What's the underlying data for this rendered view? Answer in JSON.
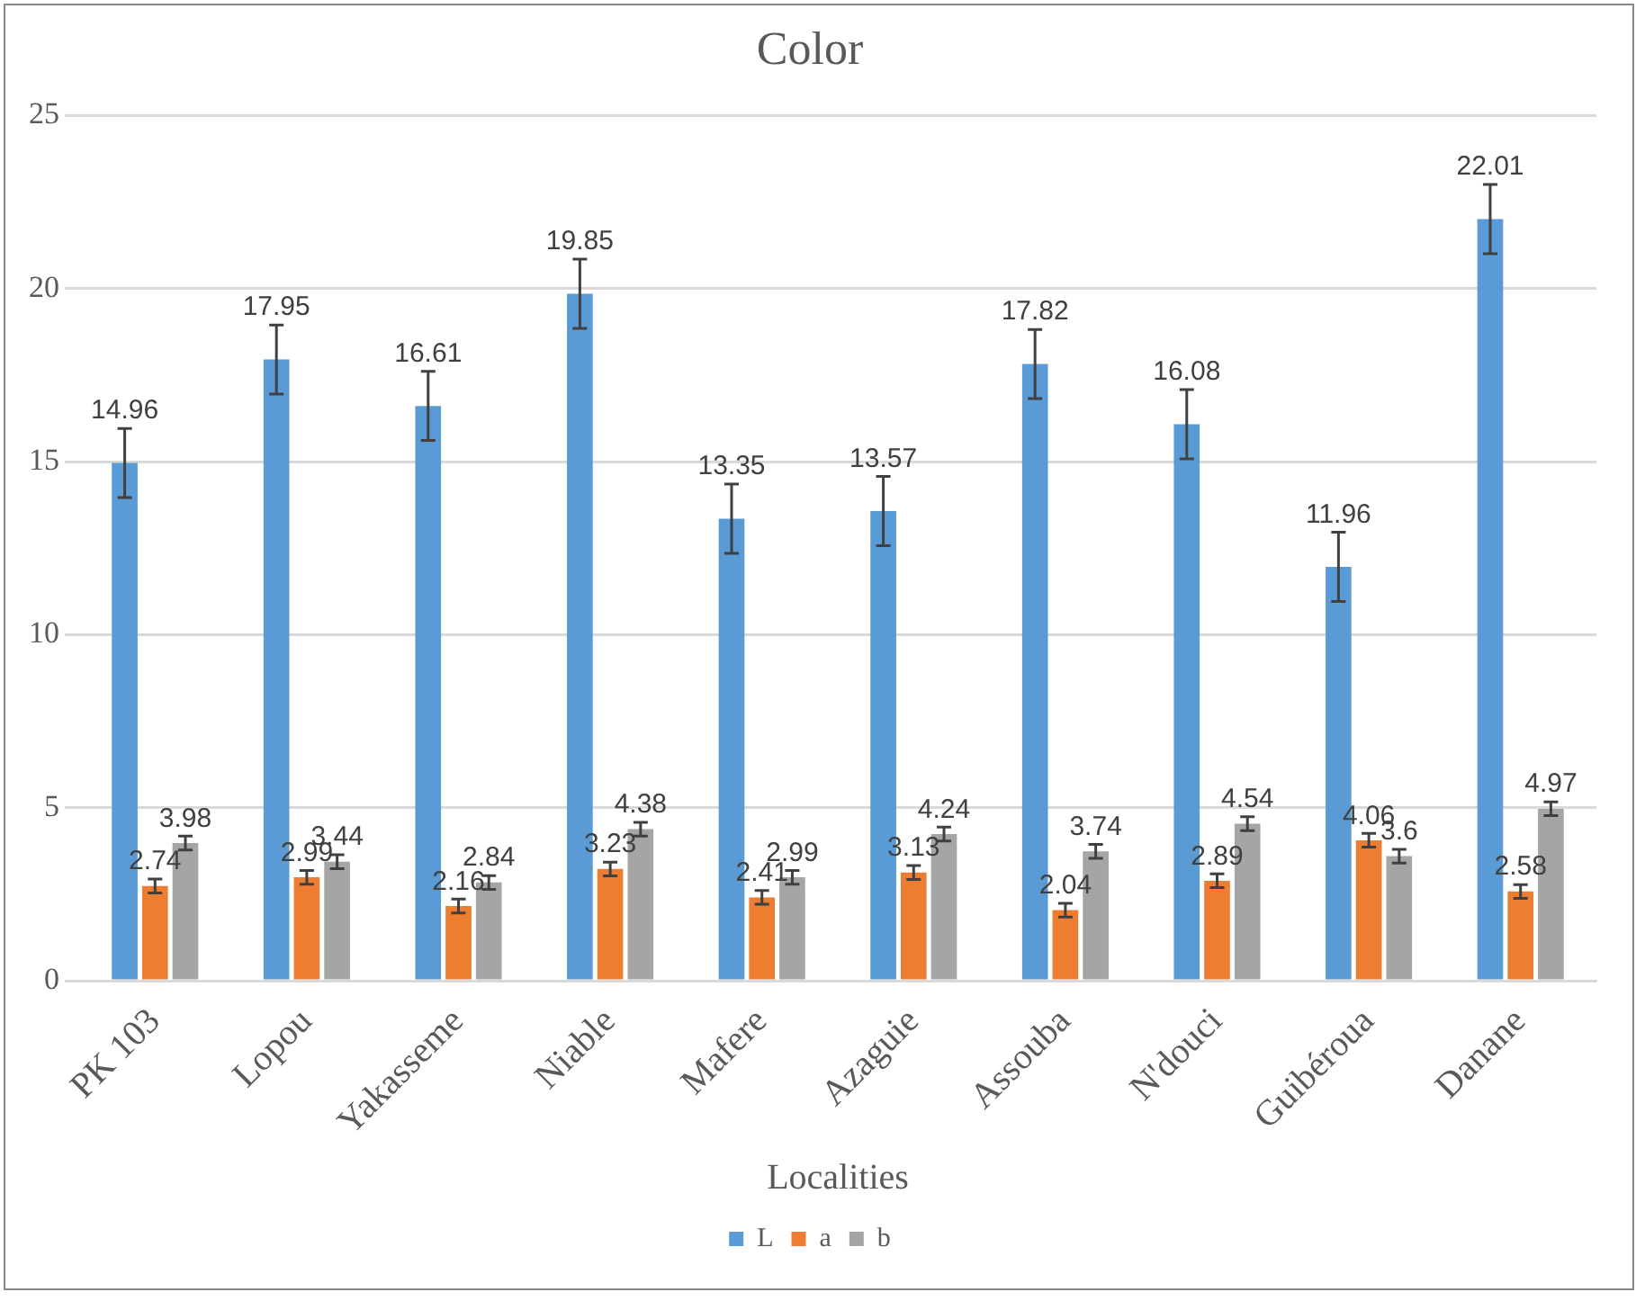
{
  "chart_data": {
    "type": "bar",
    "title": "Color",
    "xlabel": "Localities",
    "categories": [
      "PK 103",
      "Lopou",
      "Yakasseme",
      "Niable",
      "Mafere",
      "Azaguie",
      "Assouba",
      "N'douci",
      "Guibéroua",
      "Danane"
    ],
    "series": [
      {
        "name": "L",
        "color": "#5b9bd5",
        "values": [
          14.96,
          17.95,
          16.61,
          19.85,
          13.35,
          13.57,
          17.82,
          16.08,
          11.96,
          22.01
        ],
        "errors": [
          1,
          1,
          1,
          1,
          1,
          1,
          1,
          1,
          1,
          1
        ]
      },
      {
        "name": "a",
        "color": "#ed7d31",
        "values": [
          2.74,
          2.99,
          2.16,
          3.23,
          2.41,
          3.13,
          2.04,
          2.89,
          4.06,
          2.58
        ],
        "errors": [
          0.2,
          0.2,
          0.2,
          0.2,
          0.2,
          0.2,
          0.2,
          0.2,
          0.2,
          0.2
        ]
      },
      {
        "name": "b",
        "color": "#a5a5a5",
        "values": [
          3.98,
          3.44,
          2.84,
          4.38,
          2.99,
          4.24,
          3.74,
          4.54,
          3.6,
          4.97
        ],
        "errors": [
          0.2,
          0.2,
          0.2,
          0.2,
          0.2,
          0.2,
          0.2,
          0.2,
          0.2,
          0.2
        ]
      }
    ],
    "ylim": [
      0,
      25
    ],
    "yticks": [
      0,
      5,
      10,
      15,
      20,
      25
    ],
    "grid": "y",
    "legend": "bottom",
    "data_labels": true
  }
}
